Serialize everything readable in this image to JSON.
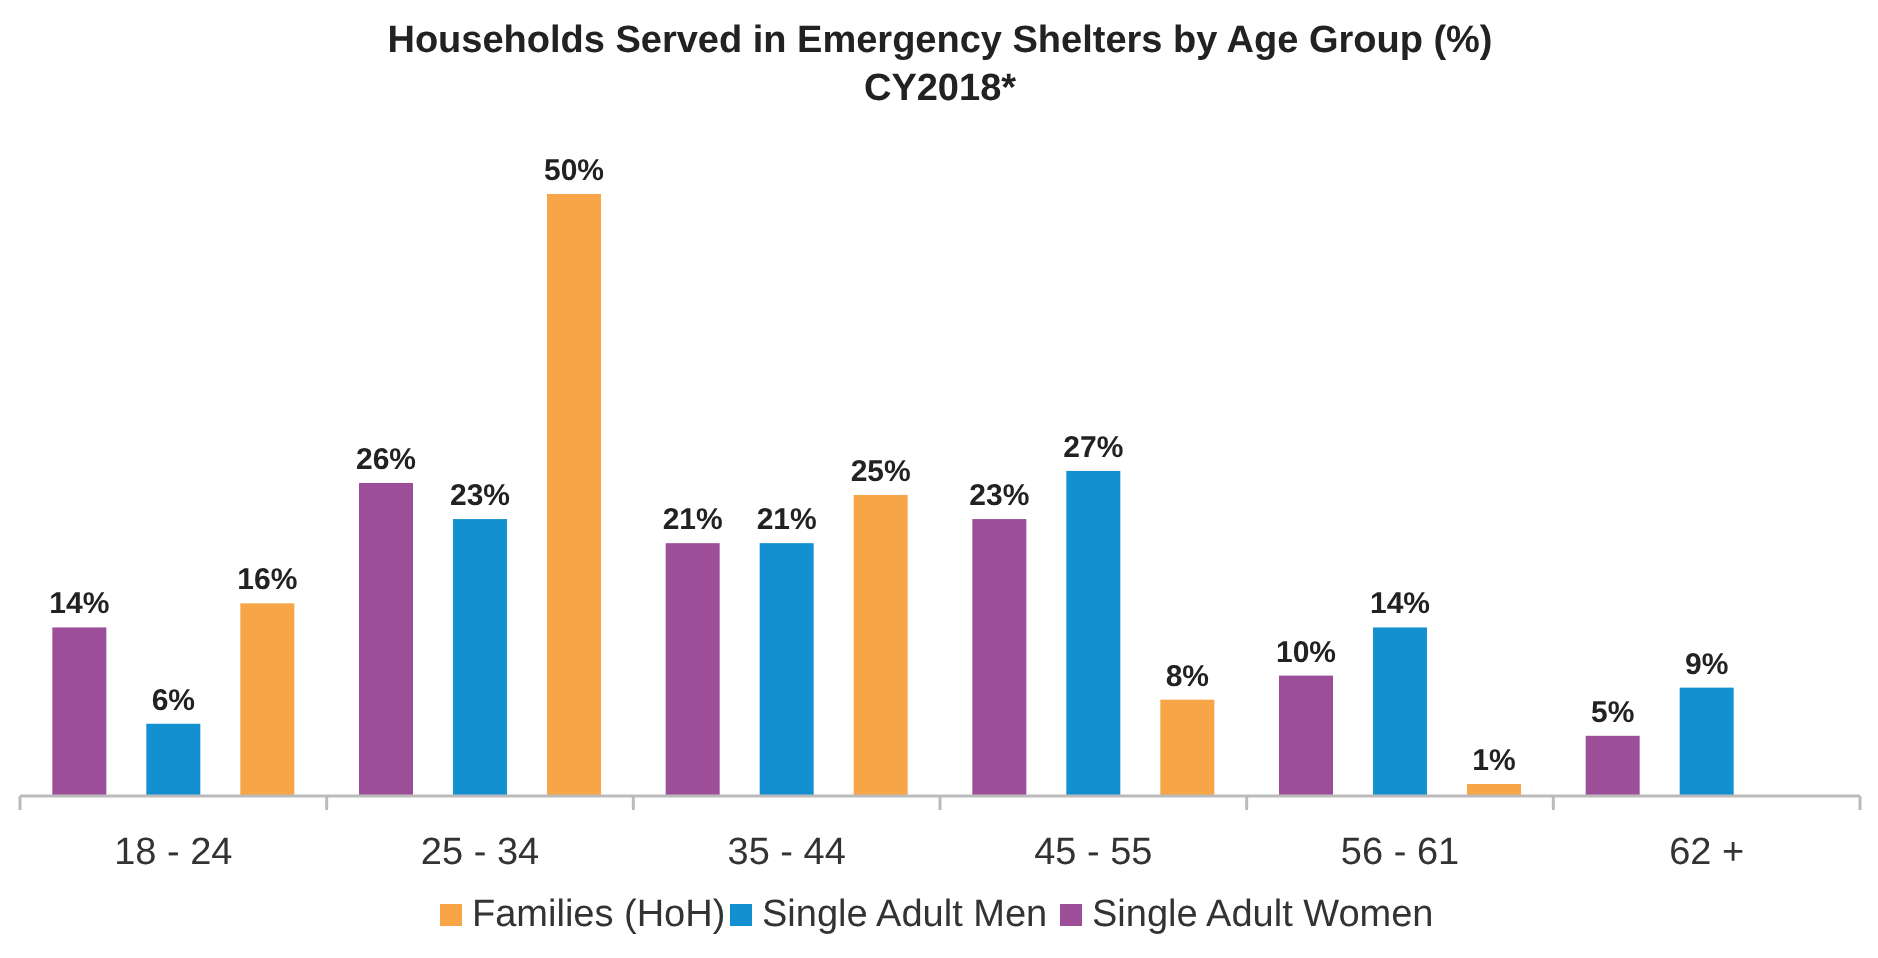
{
  "chart_data": {
    "type": "bar",
    "title": "Households Served in Emergency Shelters by Age Group (%)",
    "subtitle": "CY2018*",
    "categories": [
      "18 - 24",
      "25 - 34",
      "35 - 44",
      "45 - 55",
      "56 - 61",
      "62 +"
    ],
    "series": [
      {
        "name": "Single Adult Women",
        "color": "#9c4f98",
        "values": [
          14,
          26,
          21,
          23,
          10,
          5
        ],
        "value_labels": [
          "14%",
          "26%",
          "21%",
          "23%",
          "10%",
          "5%"
        ]
      },
      {
        "name": "Single Adult Men",
        "color": "#1390d0",
        "values": [
          6,
          23,
          21,
          27,
          14,
          9
        ],
        "value_labels": [
          "6%",
          "23%",
          "21%",
          "27%",
          "14%",
          "9%"
        ]
      },
      {
        "name": "Families (HoH)",
        "color": "#f8a548",
        "values": [
          16,
          50,
          25,
          8,
          1,
          null
        ],
        "value_labels": [
          "16%",
          "50%",
          "25%",
          "8%",
          "1%",
          null
        ]
      }
    ],
    "legend": "bottom",
    "grid": false
  }
}
